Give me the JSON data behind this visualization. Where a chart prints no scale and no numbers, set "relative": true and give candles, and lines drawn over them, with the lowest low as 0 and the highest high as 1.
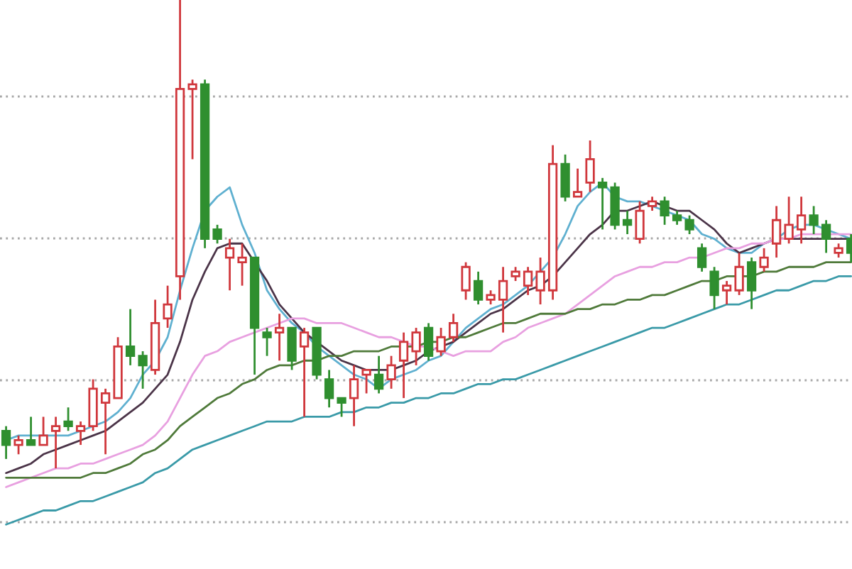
{
  "chart_data": {
    "type": "candlestick",
    "relative": true,
    "grid": "y",
    "categories": [
      null,
      null,
      null,
      null,
      null,
      null,
      null,
      null,
      null,
      null,
      null,
      null,
      null,
      null,
      null,
      null,
      null,
      null,
      null,
      null,
      null,
      null,
      null,
      null,
      null,
      null,
      null,
      null,
      null,
      null,
      null,
      null,
      null,
      null,
      null,
      null,
      null,
      null,
      null,
      null,
      null,
      null,
      null,
      null,
      null,
      null,
      null,
      null,
      null,
      null,
      null,
      null,
      null,
      null,
      null,
      null,
      null,
      null,
      null,
      null,
      null,
      null,
      null,
      null,
      null,
      null,
      null,
      null,
      null
    ],
    "ohlc": [
      [
        0.08,
        0.09,
        0.02,
        0.05
      ],
      [
        0.05,
        0.07,
        0.03,
        0.06
      ],
      [
        0.06,
        0.11,
        0.05,
        0.05
      ],
      [
        0.05,
        0.11,
        0.05,
        0.07
      ],
      [
        0.08,
        0.11,
        0.0,
        0.09
      ],
      [
        0.1,
        0.13,
        0.08,
        0.09
      ],
      [
        0.08,
        0.1,
        0.05,
        0.09
      ],
      [
        0.09,
        0.19,
        0.08,
        0.17
      ],
      [
        0.14,
        0.17,
        0.03,
        0.16
      ],
      [
        0.15,
        0.28,
        0.15,
        0.26
      ],
      [
        0.26,
        0.34,
        0.22,
        0.24
      ],
      [
        0.24,
        0.25,
        0.17,
        0.22
      ],
      [
        0.21,
        0.36,
        0.2,
        0.31
      ],
      [
        0.32,
        0.39,
        0.3,
        0.35
      ],
      [
        0.41,
        1.0,
        0.36,
        0.81
      ],
      [
        0.81,
        0.83,
        0.66,
        0.82
      ],
      [
        0.82,
        0.83,
        0.47,
        0.49
      ],
      [
        0.51,
        0.52,
        0.48,
        0.49
      ],
      [
        0.45,
        0.49,
        0.38,
        0.47
      ],
      [
        0.44,
        0.48,
        0.39,
        0.45
      ],
      [
        0.45,
        0.45,
        0.2,
        0.3
      ],
      [
        0.29,
        0.3,
        0.24,
        0.28
      ],
      [
        0.29,
        0.33,
        0.23,
        0.3
      ],
      [
        0.3,
        0.3,
        0.21,
        0.23
      ],
      [
        0.26,
        0.3,
        0.11,
        0.29
      ],
      [
        0.3,
        0.3,
        0.19,
        0.2
      ],
      [
        0.19,
        0.21,
        0.13,
        0.15
      ],
      [
        0.15,
        0.15,
        0.11,
        0.14
      ],
      [
        0.15,
        0.22,
        0.09,
        0.19
      ],
      [
        0.2,
        0.21,
        0.16,
        0.21
      ],
      [
        0.2,
        0.24,
        0.16,
        0.17
      ],
      [
        0.19,
        0.24,
        0.17,
        0.22
      ],
      [
        0.23,
        0.29,
        0.15,
        0.27
      ],
      [
        0.25,
        0.3,
        0.22,
        0.29
      ],
      [
        0.3,
        0.31,
        0.23,
        0.24
      ],
      [
        0.25,
        0.3,
        0.24,
        0.28
      ],
      [
        0.28,
        0.33,
        0.27,
        0.31
      ],
      [
        0.38,
        0.44,
        0.36,
        0.43
      ],
      [
        0.4,
        0.42,
        0.35,
        0.36
      ],
      [
        0.36,
        0.38,
        0.35,
        0.37
      ],
      [
        0.36,
        0.43,
        0.29,
        0.4
      ],
      [
        0.41,
        0.43,
        0.4,
        0.42
      ],
      [
        0.39,
        0.43,
        0.37,
        0.42
      ],
      [
        0.38,
        0.45,
        0.35,
        0.42
      ],
      [
        0.38,
        0.69,
        0.36,
        0.65
      ],
      [
        0.65,
        0.67,
        0.57,
        0.58
      ],
      [
        0.58,
        0.64,
        0.58,
        0.59
      ],
      [
        0.61,
        0.7,
        0.59,
        0.66
      ],
      [
        0.61,
        0.62,
        0.51,
        0.6
      ],
      [
        0.6,
        0.61,
        0.51,
        0.52
      ],
      [
        0.53,
        0.55,
        0.5,
        0.52
      ],
      [
        0.49,
        0.57,
        0.48,
        0.55
      ],
      [
        0.56,
        0.58,
        0.55,
        0.57
      ],
      [
        0.57,
        0.58,
        0.52,
        0.54
      ],
      [
        0.54,
        0.55,
        0.52,
        0.53
      ],
      [
        0.53,
        0.54,
        0.5,
        0.51
      ],
      [
        0.47,
        0.48,
        0.42,
        0.43
      ],
      [
        0.42,
        0.43,
        0.34,
        0.37
      ],
      [
        0.38,
        0.4,
        0.35,
        0.39
      ],
      [
        0.38,
        0.46,
        0.37,
        0.43
      ],
      [
        0.44,
        0.45,
        0.34,
        0.38
      ],
      [
        0.43,
        0.47,
        0.42,
        0.45
      ],
      [
        0.48,
        0.56,
        0.45,
        0.53
      ],
      [
        0.49,
        0.58,
        0.48,
        0.52
      ],
      [
        0.51,
        0.58,
        0.48,
        0.54
      ],
      [
        0.54,
        0.56,
        0.5,
        0.52
      ],
      [
        0.52,
        0.53,
        0.46,
        0.49
      ],
      [
        0.46,
        0.48,
        0.45,
        0.47
      ],
      [
        0.49,
        0.5,
        0.44,
        0.46
      ]
    ],
    "colors": [
      "#2f8f2f",
      "#d0373c",
      "#2f8f2f",
      "#d0373c",
      "#d0373c",
      "#2f8f2f",
      "#d0373c",
      "#d0373c",
      "#d0373c",
      "#d0373c",
      "#2f8f2f",
      "#2f8f2f",
      "#d0373c",
      "#d0373c",
      "#d0373c",
      "#d0373c",
      "#2f8f2f",
      "#2f8f2f",
      "#d0373c",
      "#d0373c",
      "#2f8f2f",
      "#2f8f2f",
      "#d0373c",
      "#2f8f2f",
      "#d0373c",
      "#2f8f2f",
      "#2f8f2f",
      "#2f8f2f",
      "#d0373c",
      "#d0373c",
      "#2f8f2f",
      "#d0373c",
      "#d0373c",
      "#d0373c",
      "#2f8f2f",
      "#d0373c",
      "#d0373c",
      "#d0373c",
      "#2f8f2f",
      "#d0373c",
      "#d0373c",
      "#d0373c",
      "#d0373c",
      "#d0373c",
      "#d0373c",
      "#2f8f2f",
      "#d0373c",
      "#d0373c",
      "#2f8f2f",
      "#2f8f2f",
      "#2f8f2f",
      "#d0373c",
      "#d0373c",
      "#2f8f2f",
      "#2f8f2f",
      "#2f8f2f",
      "#2f8f2f",
      "#2f8f2f",
      "#d0373c",
      "#d0373c",
      "#2f8f2f",
      "#d0373c",
      "#d0373c",
      "#d0373c",
      "#d0373c",
      "#2f8f2f",
      "#2f8f2f",
      "#d0373c",
      "#2f8f2f"
    ],
    "series": [
      {
        "type": "line",
        "color": "#5fb0d0",
        "values": [
          0.06,
          0.07,
          0.07,
          0.07,
          0.07,
          0.07,
          0.08,
          0.09,
          0.1,
          0.12,
          0.15,
          0.2,
          0.23,
          0.28,
          0.38,
          0.47,
          0.55,
          0.58,
          0.6,
          0.52,
          0.46,
          0.38,
          0.34,
          0.31,
          0.29,
          0.26,
          0.24,
          0.22,
          0.2,
          0.19,
          0.17,
          0.19,
          0.2,
          0.21,
          0.23,
          0.24,
          0.27,
          0.3,
          0.32,
          0.34,
          0.35,
          0.37,
          0.39,
          0.42,
          0.45,
          0.5,
          0.56,
          0.59,
          0.61,
          0.58,
          0.57,
          0.57,
          0.56,
          0.55,
          0.54,
          0.53,
          0.5,
          0.49,
          0.47,
          0.46,
          0.46,
          0.48,
          0.49,
          0.51,
          0.52,
          0.52,
          0.51,
          0.5,
          0.49
        ]
      },
      {
        "type": "line",
        "color": "#4b3448",
        "values": [
          -0.01,
          0.0,
          0.01,
          0.03,
          0.04,
          0.05,
          0.06,
          0.07,
          0.08,
          0.1,
          0.12,
          0.14,
          0.17,
          0.2,
          0.27,
          0.36,
          0.42,
          0.47,
          0.48,
          0.48,
          0.44,
          0.4,
          0.35,
          0.32,
          0.29,
          0.27,
          0.25,
          0.23,
          0.22,
          0.21,
          0.21,
          0.21,
          0.22,
          0.23,
          0.25,
          0.26,
          0.27,
          0.29,
          0.31,
          0.33,
          0.34,
          0.36,
          0.38,
          0.39,
          0.41,
          0.44,
          0.47,
          0.5,
          0.52,
          0.55,
          0.55,
          0.56,
          0.57,
          0.56,
          0.55,
          0.55,
          0.53,
          0.51,
          0.48,
          0.46,
          0.47,
          0.48,
          0.49,
          0.49,
          0.49,
          0.49,
          0.49,
          0.49,
          0.49
        ]
      },
      {
        "type": "line",
        "color": "#e8a0e0",
        "values": [
          -0.04,
          -0.03,
          -0.02,
          -0.01,
          0.0,
          0.0,
          0.01,
          0.01,
          0.02,
          0.03,
          0.04,
          0.05,
          0.07,
          0.1,
          0.15,
          0.2,
          0.24,
          0.25,
          0.27,
          0.28,
          0.29,
          0.3,
          0.31,
          0.32,
          0.32,
          0.31,
          0.31,
          0.31,
          0.3,
          0.29,
          0.28,
          0.28,
          0.27,
          0.26,
          0.26,
          0.25,
          0.24,
          0.25,
          0.25,
          0.25,
          0.27,
          0.28,
          0.3,
          0.31,
          0.32,
          0.33,
          0.35,
          0.37,
          0.39,
          0.41,
          0.42,
          0.43,
          0.43,
          0.44,
          0.44,
          0.45,
          0.45,
          0.46,
          0.47,
          0.47,
          0.48,
          0.48,
          0.49,
          0.49,
          0.5,
          0.5,
          0.5,
          0.5,
          0.5
        ]
      },
      {
        "type": "line",
        "color": "#4f7a3a",
        "values": [
          -0.02,
          -0.02,
          -0.02,
          -0.02,
          -0.02,
          -0.02,
          -0.02,
          -0.01,
          -0.01,
          0.0,
          0.01,
          0.03,
          0.04,
          0.06,
          0.09,
          0.11,
          0.13,
          0.15,
          0.16,
          0.18,
          0.19,
          0.21,
          0.22,
          0.22,
          0.23,
          0.23,
          0.24,
          0.24,
          0.25,
          0.25,
          0.25,
          0.26,
          0.26,
          0.26,
          0.27,
          0.27,
          0.28,
          0.28,
          0.29,
          0.3,
          0.31,
          0.31,
          0.32,
          0.33,
          0.33,
          0.33,
          0.34,
          0.34,
          0.35,
          0.35,
          0.36,
          0.36,
          0.37,
          0.37,
          0.38,
          0.39,
          0.4,
          0.4,
          0.41,
          0.41,
          0.41,
          0.42,
          0.42,
          0.43,
          0.43,
          0.43,
          0.44,
          0.44,
          0.44
        ]
      },
      {
        "type": "line",
        "color": "#3a9aa8",
        "values": [
          -0.12,
          -0.11,
          -0.1,
          -0.09,
          -0.09,
          -0.08,
          -0.07,
          -0.07,
          -0.06,
          -0.05,
          -0.04,
          -0.03,
          -0.01,
          0.0,
          0.02,
          0.04,
          0.05,
          0.06,
          0.07,
          0.08,
          0.09,
          0.1,
          0.1,
          0.1,
          0.11,
          0.11,
          0.11,
          0.12,
          0.12,
          0.13,
          0.13,
          0.14,
          0.14,
          0.15,
          0.15,
          0.16,
          0.16,
          0.17,
          0.18,
          0.18,
          0.19,
          0.19,
          0.2,
          0.21,
          0.22,
          0.23,
          0.24,
          0.25,
          0.26,
          0.27,
          0.28,
          0.29,
          0.3,
          0.3,
          0.31,
          0.32,
          0.33,
          0.34,
          0.35,
          0.35,
          0.36,
          0.37,
          0.38,
          0.38,
          0.39,
          0.4,
          0.4,
          0.41,
          0.41
        ]
      }
    ]
  }
}
